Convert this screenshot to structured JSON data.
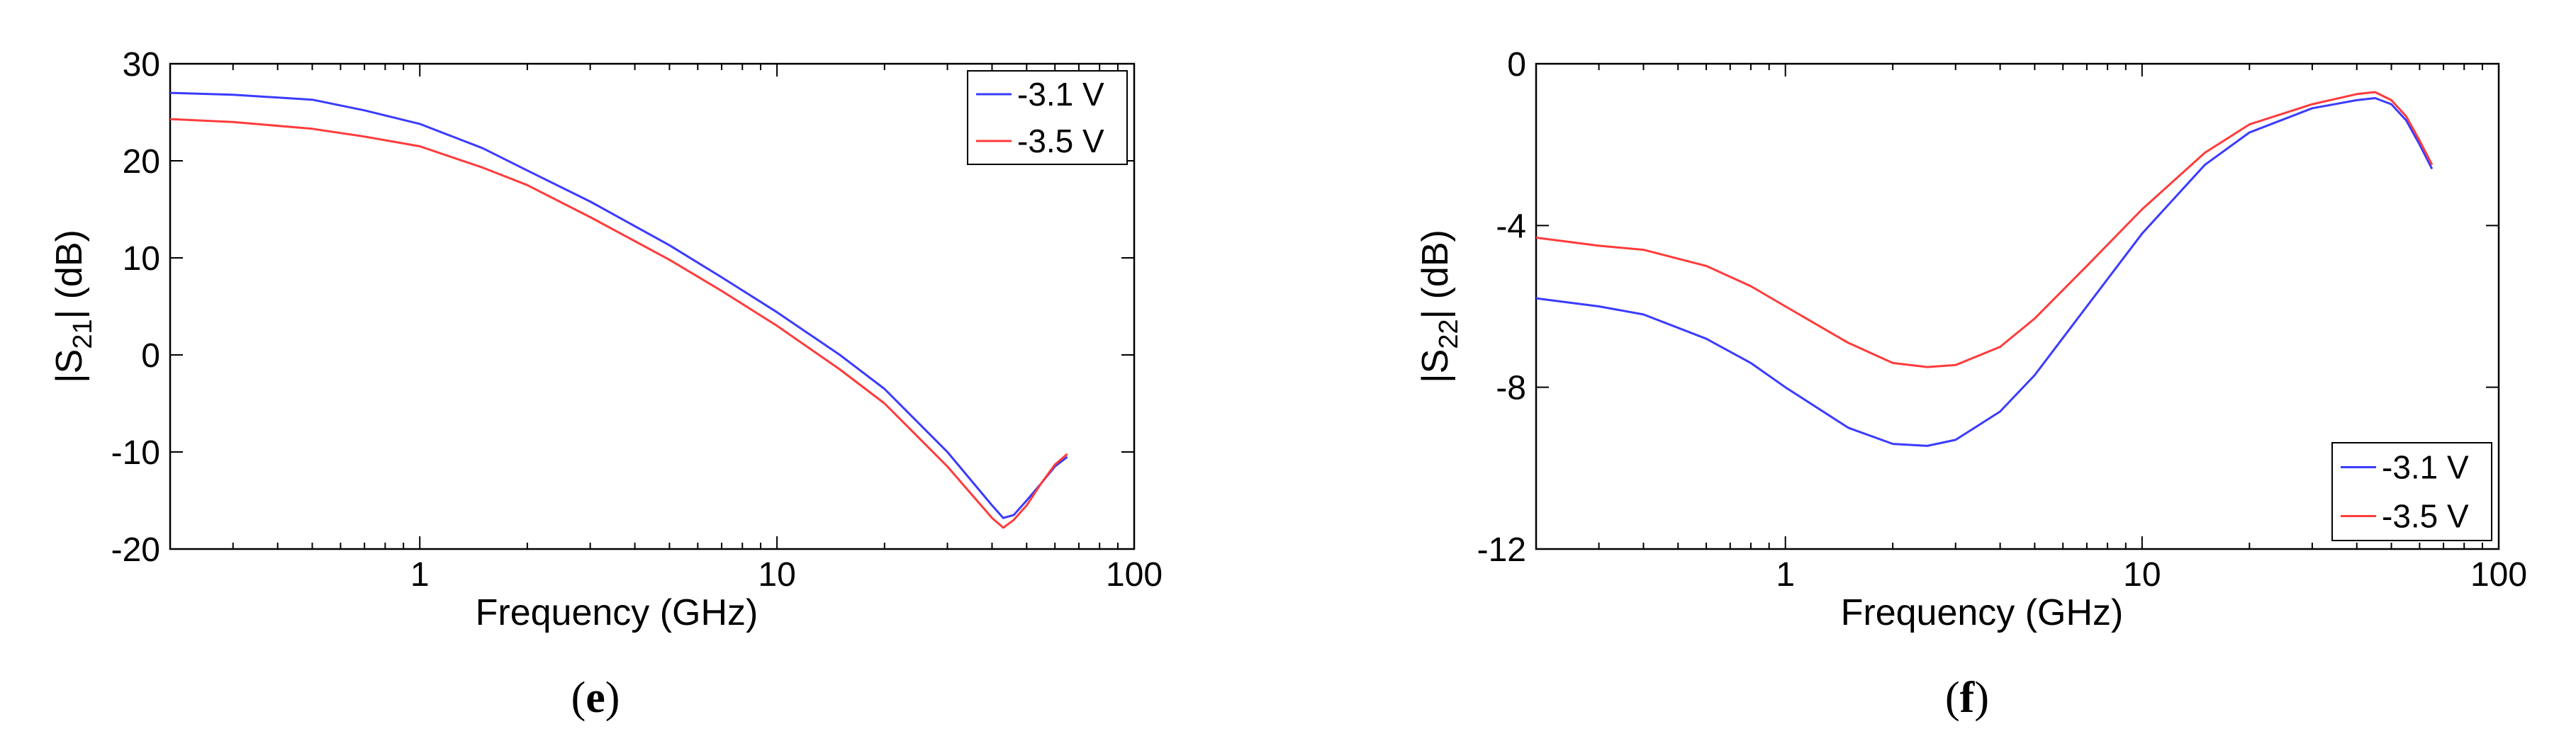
{
  "chart_data": [
    {
      "type": "line",
      "caption": {
        "open": "(",
        "letter": "e",
        "close": ")"
      },
      "xlabel": "Frequency (GHz)",
      "ylabel": {
        "pre": "|S",
        "sub": "21",
        "post": "| (dB)"
      },
      "xscale": "log",
      "xlim": [
        0.2,
        100
      ],
      "ylim": [
        -20,
        30
      ],
      "xticks": [
        {
          "v": 1,
          "label": "1"
        },
        {
          "v": 10,
          "label": "10"
        },
        {
          "v": 100,
          "label": "100"
        }
      ],
      "yticks": [
        {
          "v": -20,
          "label": "-20"
        },
        {
          "v": -10,
          "label": "-10"
        },
        {
          "v": 0,
          "label": "0"
        },
        {
          "v": 10,
          "label": "10"
        },
        {
          "v": 20,
          "label": "20"
        },
        {
          "v": 30,
          "label": "30"
        }
      ],
      "legend_position": "top-right",
      "grid": false,
      "series": [
        {
          "name": "-3.1 V",
          "color": "#3b3bff",
          "x": [
            0.2,
            0.3,
            0.5,
            0.7,
            1,
            1.5,
            2,
            3,
            5,
            7,
            10,
            15,
            20,
            30,
            40,
            43,
            46,
            50,
            55,
            60,
            65
          ],
          "y": [
            27,
            26.8,
            26.3,
            25.2,
            23.8,
            21.3,
            19,
            15.8,
            11.3,
            8,
            4.4,
            0,
            -3.5,
            -10,
            -15.5,
            -16.8,
            -16.5,
            -15,
            -13.2,
            -11.5,
            -10.5
          ]
        },
        {
          "name": "-3.5 V",
          "color": "#ff3b3b",
          "x": [
            0.2,
            0.3,
            0.5,
            0.7,
            1,
            1.5,
            2,
            3,
            5,
            7,
            10,
            15,
            20,
            30,
            40,
            43,
            46,
            50,
            55,
            60,
            65
          ],
          "y": [
            24.3,
            24,
            23.3,
            22.5,
            21.5,
            19.3,
            17.5,
            14.2,
            9.8,
            6.6,
            3,
            -1.5,
            -5,
            -11.5,
            -16.8,
            -17.8,
            -17,
            -15.5,
            -13.2,
            -11.3,
            -10.2
          ]
        }
      ]
    },
    {
      "type": "line",
      "caption": {
        "open": "(",
        "letter": "f",
        "close": ")"
      },
      "xlabel": "Frequency (GHz)",
      "ylabel": {
        "pre": "|S",
        "sub": "22",
        "post": "| (dB)"
      },
      "xscale": "log",
      "xlim": [
        0.2,
        100
      ],
      "ylim": [
        -12,
        0
      ],
      "xticks": [
        {
          "v": 1,
          "label": "1"
        },
        {
          "v": 10,
          "label": "10"
        },
        {
          "v": 100,
          "label": "100"
        }
      ],
      "yticks": [
        {
          "v": -12,
          "label": "-12"
        },
        {
          "v": -8,
          "label": "-8"
        },
        {
          "v": -4,
          "label": "-4"
        },
        {
          "v": 0,
          "label": "0"
        }
      ],
      "legend_position": "bottom-right",
      "grid": false,
      "series": [
        {
          "name": "-3.1 V",
          "color": "#3b3bff",
          "x": [
            0.2,
            0.3,
            0.4,
            0.6,
            0.8,
            1,
            1.5,
            2,
            2.5,
            3,
            4,
            5,
            7,
            10,
            15,
            20,
            30,
            40,
            45,
            50,
            55,
            60,
            65
          ],
          "y": [
            -5.8,
            -6,
            -6.2,
            -6.8,
            -7.4,
            -8,
            -9,
            -9.4,
            -9.45,
            -9.3,
            -8.6,
            -7.7,
            -6,
            -4.2,
            -2.5,
            -1.7,
            -1.1,
            -0.9,
            -0.85,
            -1,
            -1.4,
            -2,
            -2.6
          ]
        },
        {
          "name": "-3.5 V",
          "color": "#ff3b3b",
          "x": [
            0.2,
            0.3,
            0.4,
            0.6,
            0.8,
            1,
            1.5,
            2,
            2.5,
            3,
            4,
            5,
            7,
            10,
            15,
            20,
            30,
            40,
            45,
            50,
            55,
            60,
            65
          ],
          "y": [
            -4.3,
            -4.5,
            -4.6,
            -5,
            -5.5,
            -6,
            -6.9,
            -7.4,
            -7.5,
            -7.45,
            -7,
            -6.3,
            -5,
            -3.6,
            -2.2,
            -1.5,
            -1,
            -0.75,
            -0.7,
            -0.9,
            -1.3,
            -1.9,
            -2.5
          ]
        }
      ]
    }
  ]
}
